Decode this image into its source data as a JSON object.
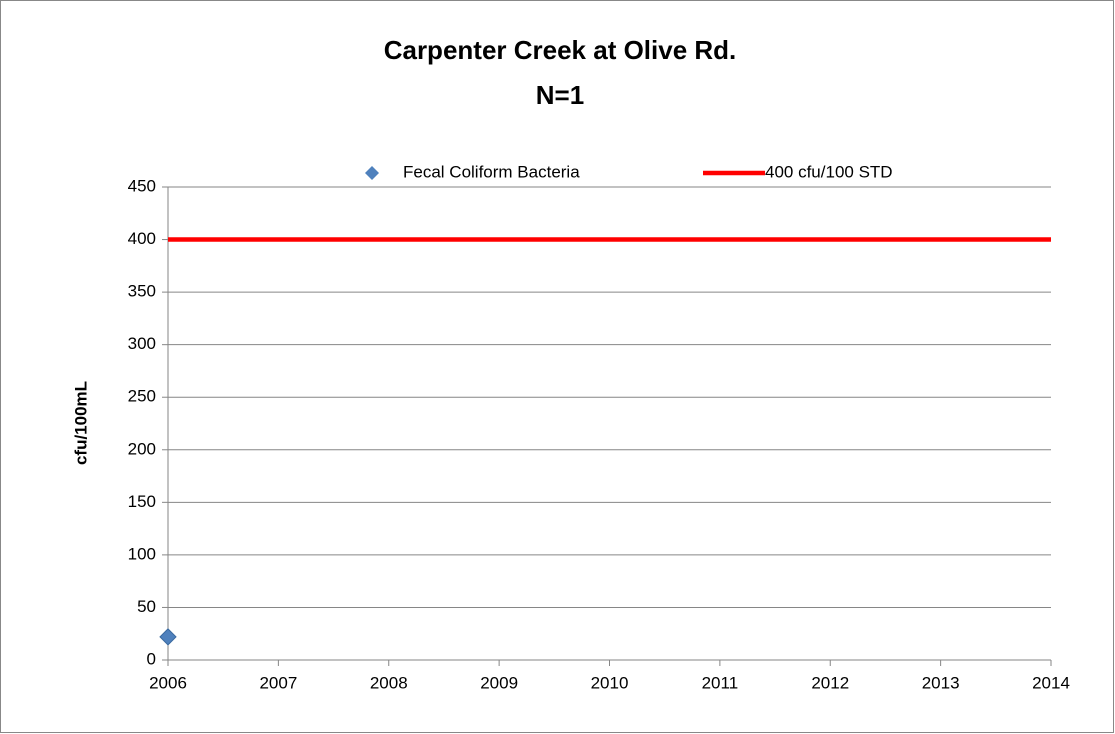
{
  "chart_data": {
    "type": "scatter",
    "title": "Carpenter Creek at Olive Rd.",
    "subtitle": "N=1",
    "y_label": "cfu/100mL",
    "series": [
      {
        "name": "Fecal Coliform Bacteria",
        "color": "#4f81bd",
        "marker": "diamond",
        "x": [
          2006
        ],
        "values": [
          22
        ]
      },
      {
        "name": "400 cfu/100 STD",
        "color": "#ff0000",
        "marker": "line",
        "x": [
          2006,
          2014
        ],
        "values": [
          400,
          400
        ]
      }
    ],
    "xlim": [
      2006,
      2014
    ],
    "xticks": [
      2006,
      2007,
      2008,
      2009,
      2010,
      2011,
      2012,
      2013,
      2014
    ],
    "ylim": [
      0,
      450
    ],
    "yticks": [
      0,
      50,
      100,
      150,
      200,
      250,
      300,
      350,
      400,
      450
    ],
    "grid": true,
    "legend": "top"
  }
}
